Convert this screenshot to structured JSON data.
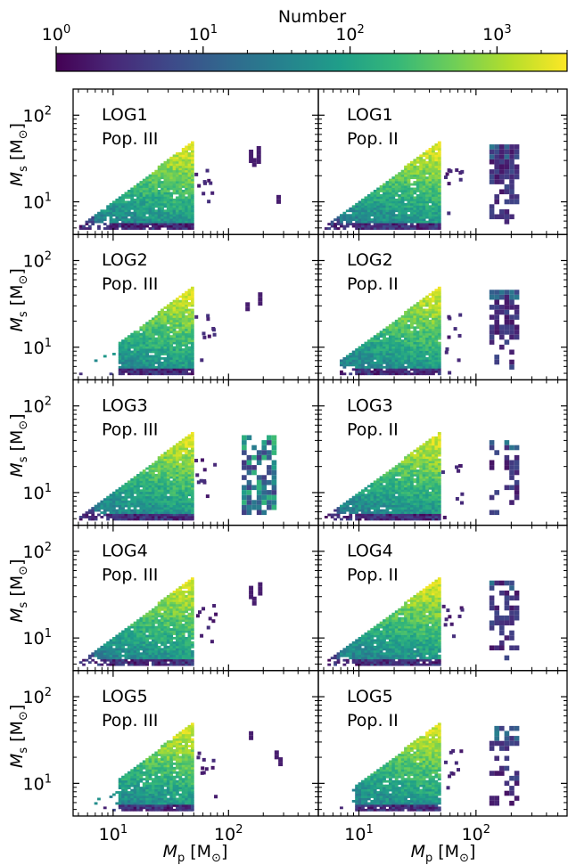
{
  "chart_data": {
    "type": "heatmap",
    "colorbar": {
      "title": "Number",
      "scale": "log",
      "range": [
        1,
        3000
      ],
      "colormap": "viridis",
      "ticks": [
        {
          "value": 1,
          "base": "10",
          "exp": "0"
        },
        {
          "value": 10,
          "base": "10",
          "exp": "1"
        },
        {
          "value": 100,
          "base": "10",
          "exp": "2"
        },
        {
          "value": 1000,
          "base": "10",
          "exp": "3"
        }
      ],
      "colors": [
        "#440154",
        "#482878",
        "#3e4989",
        "#31688e",
        "#26828e",
        "#1f9e89",
        "#35b779",
        "#6ece58",
        "#b5de2b",
        "#fde725"
      ]
    },
    "axes": {
      "x": {
        "label_main": "M",
        "label_sub": "p",
        "label_unit": "[M",
        "label_close": "]",
        "scale": "log",
        "range": [
          4.5,
          600
        ],
        "ticks": [
          {
            "value": 10,
            "base": "10",
            "exp": "1"
          },
          {
            "value": 100,
            "base": "10",
            "exp": "2"
          }
        ]
      },
      "y": {
        "label_main": "M",
        "label_sub": "s",
        "label_unit": "[M",
        "label_close": "]",
        "scale": "log",
        "range": [
          4.2,
          200
        ],
        "ticks": [
          {
            "value": 10,
            "base": "10",
            "exp": "1"
          },
          {
            "value": 100,
            "base": "10",
            "exp": "2"
          }
        ]
      }
    },
    "rows": [
      {
        "model": "LOG1",
        "panels": [
          {
            "pop": "Pop. III",
            "variant": "A",
            "extra": [
              [
                150,
                40,
                3
              ],
              [
                175,
                44,
                4
              ],
              [
                160,
                32,
                2
              ],
              [
                260,
                12,
                2
              ]
            ]
          },
          {
            "pop": "Pop. II",
            "variant": "B",
            "extra": []
          }
        ]
      },
      {
        "model": "LOG2",
        "panels": [
          {
            "pop": "Pop. III",
            "variant": "C",
            "extra": [
              [
                140,
                33,
                2
              ],
              [
                180,
                43,
                3
              ]
            ]
          },
          {
            "pop": "Pop. II",
            "variant": "D",
            "extra": []
          }
        ]
      },
      {
        "model": "LOG3",
        "panels": [
          {
            "pop": "Pop. III",
            "variant": "E",
            "extra": []
          },
          {
            "pop": "Pop. II",
            "variant": "F",
            "extra": []
          }
        ]
      },
      {
        "model": "LOG4",
        "panels": [
          {
            "pop": "Pop. III",
            "variant": "A",
            "extra": [
              [
                150,
                40,
                3
              ],
              [
                180,
                44,
                3
              ],
              [
                160,
                30,
                2
              ]
            ]
          },
          {
            "pop": "Pop. II",
            "variant": "G",
            "extra": []
          }
        ]
      },
      {
        "model": "LOG5",
        "panels": [
          {
            "pop": "Pop. III",
            "variant": "C",
            "extra": [
              [
                150,
                40,
                2
              ],
              [
                250,
                24,
                2
              ],
              [
                270,
                20,
                2
              ]
            ]
          },
          {
            "pop": "Pop. II",
            "variant": "H",
            "extra": []
          }
        ]
      }
    ]
  }
}
